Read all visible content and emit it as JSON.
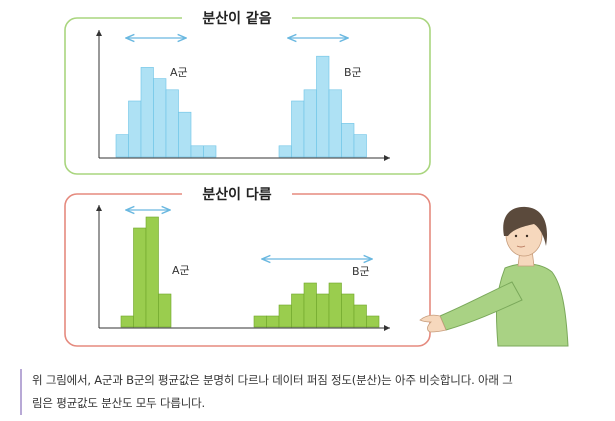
{
  "panel_same": {
    "title": "분산이 같음",
    "border_color": "#a9d57e",
    "bar_color": "#aee1f4",
    "bar_stroke": "#6dc3e6",
    "groups": [
      {
        "label": "A군",
        "values": [
          2,
          5,
          8,
          7,
          6,
          4,
          1,
          1
        ]
      },
      {
        "label": "B군",
        "values": [
          1,
          5,
          6,
          9,
          6,
          3,
          2
        ]
      }
    ]
  },
  "panel_diff": {
    "title": "분산이 다름",
    "border_color": "#e58a7e",
    "bar_color": "#9acd4e",
    "bar_stroke": "#6fa52a",
    "groups": [
      {
        "label": "A군",
        "values": [
          1,
          9,
          10,
          3
        ]
      },
      {
        "label": "B군",
        "values": [
          1,
          1,
          2,
          3,
          4,
          3,
          4,
          3,
          2,
          1
        ]
      }
    ]
  },
  "caption": {
    "line1": "위 그림에서, A군과 B군의 평균값은 분명히 다르나 데이터 퍼짐 정도(분산)는 아주 비슷합니다. 아래 그",
    "line2": "림은 평균값도 분산도 모두 다릅니다."
  },
  "colors": {
    "arrow": "#6ab8e0",
    "axis": "#333333",
    "caption_bar": "#b8a9d6"
  }
}
